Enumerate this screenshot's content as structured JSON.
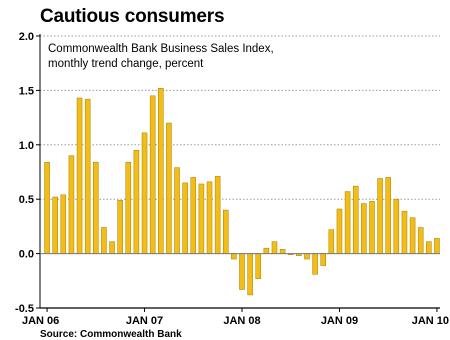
{
  "chart_data": {
    "type": "bar",
    "title": "Cautious consumers",
    "subtitle_lines": [
      "Commonwealth Bank Business Sales Index,",
      "monthly trend change, percent"
    ],
    "source": "Source: Commonwealth Bank",
    "ylim": [
      -0.5,
      2.0
    ],
    "yticks": [
      "2.0",
      "1.5",
      "1.0",
      "0.5",
      "0.0",
      "-0.5"
    ],
    "xtick_labels": [
      "JAN 06",
      "JAN 07",
      "JAN 08",
      "JAN 09",
      "JAN 10"
    ],
    "grid": true,
    "colors": {
      "bar": "#f2bd16",
      "bar_edge": "#a87c00",
      "grid": "#9a9a9a",
      "axis": "#000000"
    },
    "categories": [
      "2006-01",
      "2006-02",
      "2006-03",
      "2006-04",
      "2006-05",
      "2006-06",
      "2006-07",
      "2006-08",
      "2006-09",
      "2006-10",
      "2006-11",
      "2006-12",
      "2007-01",
      "2007-02",
      "2007-03",
      "2007-04",
      "2007-05",
      "2007-06",
      "2007-07",
      "2007-08",
      "2007-09",
      "2007-10",
      "2007-11",
      "2007-12",
      "2008-01",
      "2008-02",
      "2008-03",
      "2008-04",
      "2008-05",
      "2008-06",
      "2008-07",
      "2008-08",
      "2008-09",
      "2008-10",
      "2008-11",
      "2008-12",
      "2009-01",
      "2009-02",
      "2009-03",
      "2009-04",
      "2009-05",
      "2009-06",
      "2009-07",
      "2009-08",
      "2009-09",
      "2009-10",
      "2009-11",
      "2009-12",
      "2010-01"
    ],
    "values": [
      0.84,
      0.52,
      0.54,
      0.9,
      1.43,
      1.42,
      0.84,
      0.24,
      0.11,
      0.49,
      0.84,
      0.95,
      1.11,
      1.45,
      1.52,
      1.2,
      0.79,
      0.65,
      0.7,
      0.64,
      0.66,
      0.71,
      0.4,
      -0.05,
      -0.33,
      -0.38,
      -0.23,
      0.05,
      0.11,
      0.04,
      -0.01,
      -0.02,
      -0.05,
      -0.19,
      -0.11,
      0.22,
      0.41,
      0.57,
      0.62,
      0.46,
      0.48,
      0.69,
      0.7,
      0.5,
      0.39,
      0.33,
      0.24,
      0.11,
      0.14
    ]
  }
}
